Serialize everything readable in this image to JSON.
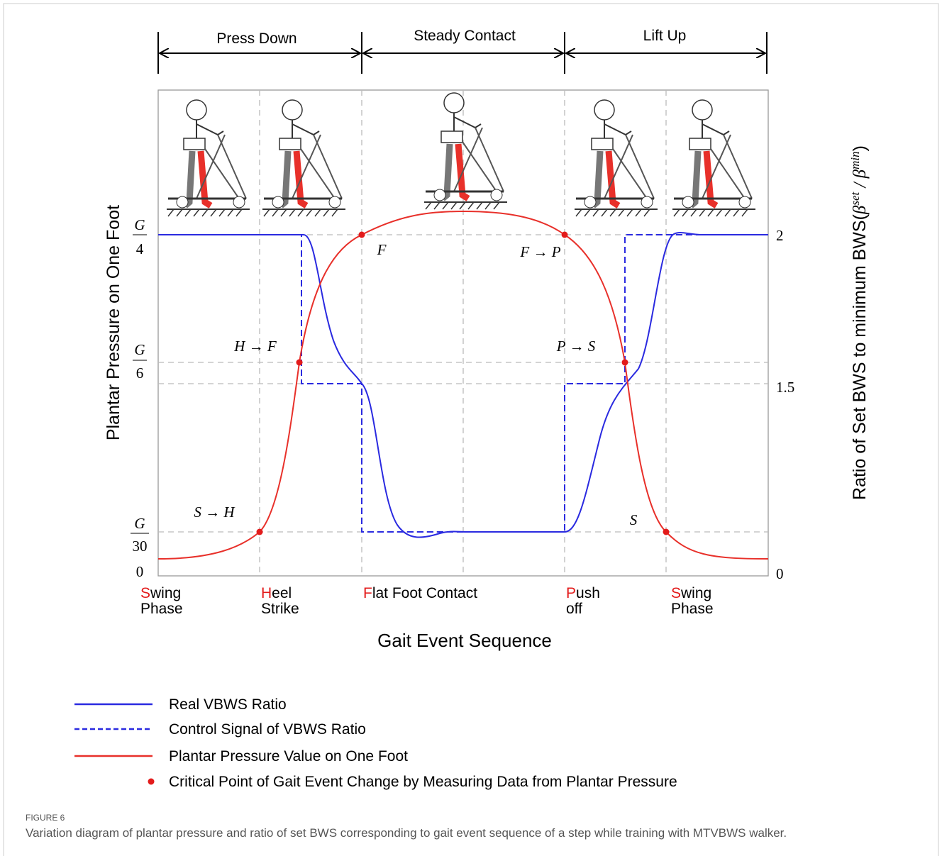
{
  "phases": [
    {
      "label": "Press Down"
    },
    {
      "label": "Steady Contact"
    },
    {
      "label": "Lift Up"
    }
  ],
  "left_axis": {
    "title": "Plantar Pressure on One Foot",
    "ticks": [
      {
        "numerator": "G",
        "denominator": "4"
      },
      {
        "numerator": "G",
        "denominator": "6"
      },
      {
        "numerator": "G",
        "denominator": "30"
      },
      {
        "label": "0"
      }
    ]
  },
  "right_axis": {
    "title": {
      "text": "Ratio of Set BWS to minimum BWS(",
      "b1": "β",
      "sup1": "set",
      "mid": " / ",
      "b2": "β",
      "sup2": "min",
      "end": ")"
    },
    "ticks": [
      "2",
      "1.5",
      "0"
    ]
  },
  "x_axis": {
    "title": "Gait Event Sequence"
  },
  "events": [
    {
      "initial": "S",
      "rest": "wing",
      "line2": "Phase"
    },
    {
      "initial": "H",
      "rest": "eel",
      "line2": "Strike"
    },
    {
      "initial": "F",
      "rest": "lat Foot Contact",
      "line2": ""
    },
    {
      "initial": "P",
      "rest": "ush",
      "line2": "off"
    },
    {
      "initial": "S",
      "rest": "wing",
      "line2": "Phase"
    }
  ],
  "annotations": [
    "S → H",
    "H → F",
    "F",
    "F → P",
    "P → S",
    "S"
  ],
  "legend": [
    "Real VBWS Ratio",
    "Control Signal of VBWS Ratio",
    "Plantar Pressure Value on One Foot",
    "Critical Point of Gait Event Change by Measuring Data from Plantar Pressure"
  ],
  "caption": {
    "label": "FIGURE 6",
    "text": "Variation diagram of plantar pressure and ratio of set BWS corresponding to gait event sequence of a step while training with MTVBWS walker."
  }
}
